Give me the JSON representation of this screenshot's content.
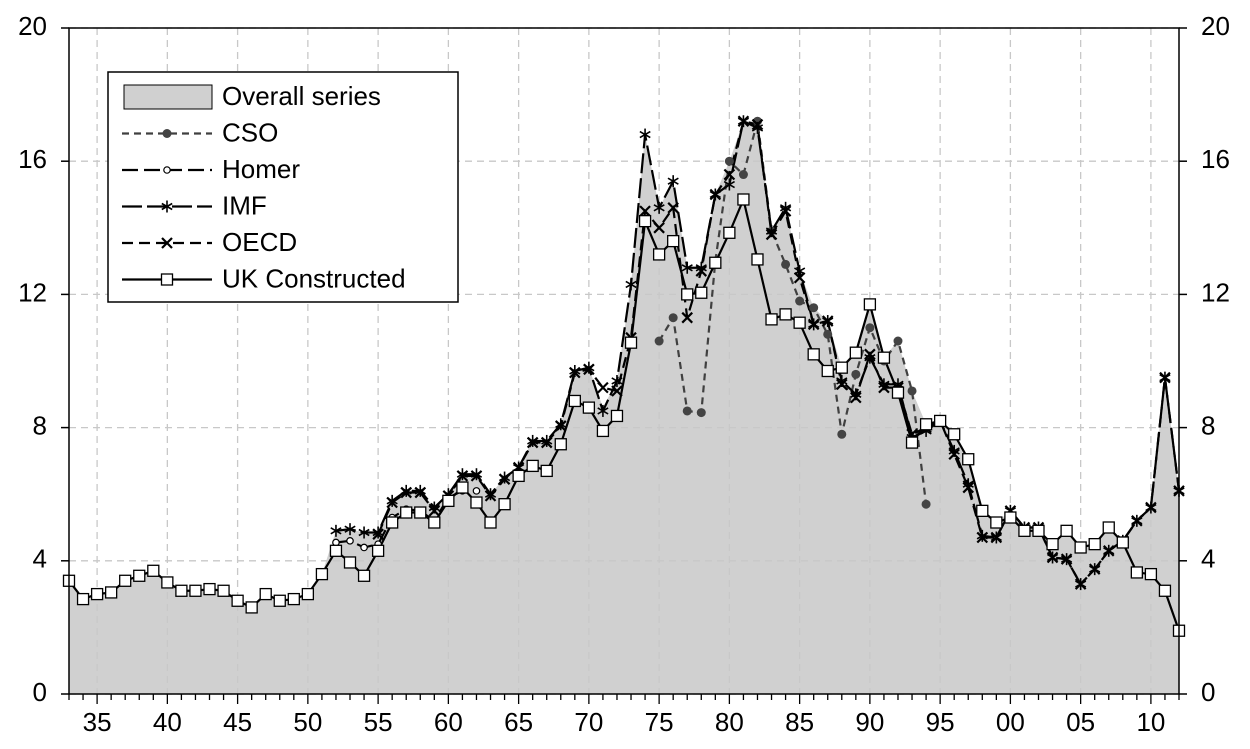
{
  "chart_data": {
    "type": "line",
    "categories": [
      null,
      null,
      "35",
      null,
      null,
      null,
      null,
      "40",
      null,
      null,
      null,
      null,
      "45",
      null,
      null,
      null,
      null,
      "50",
      null,
      null,
      null,
      null,
      "55",
      null,
      null,
      null,
      null,
      "60",
      null,
      null,
      null,
      null,
      "65",
      null,
      null,
      null,
      null,
      "70",
      null,
      null,
      null,
      null,
      "75",
      null,
      null,
      null,
      null,
      "80",
      null,
      null,
      null,
      null,
      "85",
      null,
      null,
      null,
      null,
      "90",
      null,
      null,
      null,
      null,
      "95",
      null,
      null,
      null,
      null,
      "00",
      null,
      null,
      null,
      null,
      "05",
      null,
      null,
      null,
      null,
      "10",
      null,
      null
    ],
    "ylim": [
      0,
      20
    ],
    "yticks": [
      0,
      4,
      8,
      12,
      16,
      20
    ],
    "y2lim": [
      0,
      20
    ],
    "y2ticks": [
      0,
      4,
      8,
      12,
      16,
      20
    ],
    "grid": true,
    "legend": "upper left",
    "series": [
      {
        "name": "Overall series",
        "kind": "area",
        "color": "#d0d0d0",
        "values": [
          3.4,
          2.85,
          3.0,
          3.05,
          3.4,
          3.55,
          3.7,
          3.35,
          3.1,
          3.1,
          3.15,
          3.1,
          2.8,
          2.6,
          3.0,
          2.8,
          2.85,
          3.0,
          3.6,
          4.9,
          4.95,
          4.85,
          4.85,
          5.8,
          6.1,
          6.1,
          5.6,
          6.0,
          6.6,
          6.6,
          6.0,
          6.5,
          6.8,
          7.6,
          7.6,
          8.1,
          9.7,
          9.8,
          8.6,
          9.4,
          12.3,
          16.8,
          14.6,
          15.4,
          12.8,
          12.8,
          15.0,
          16.0,
          17.2,
          17.2,
          13.9,
          14.6,
          12.7,
          11.6,
          11.2,
          9.8,
          10.25,
          11.7,
          10.1,
          10.6,
          9.1,
          8.1,
          8.2,
          7.8,
          7.05,
          5.5,
          5.15,
          5.5,
          5.0,
          5.0,
          4.5,
          4.9,
          4.4,
          4.5,
          5.0,
          4.6,
          5.2,
          5.6,
          9.5,
          6.1
        ]
      },
      {
        "name": "CSO",
        "color": "#404040",
        "dash": "7,5",
        "marker": "dot",
        "values": [
          null,
          null,
          null,
          null,
          null,
          null,
          null,
          null,
          null,
          null,
          null,
          null,
          null,
          null,
          null,
          null,
          null,
          null,
          null,
          null,
          null,
          null,
          null,
          null,
          null,
          null,
          null,
          null,
          null,
          null,
          null,
          null,
          null,
          null,
          null,
          null,
          null,
          null,
          null,
          null,
          null,
          null,
          10.6,
          11.3,
          8.5,
          8.45,
          13.0,
          16.0,
          15.6,
          17.2,
          13.9,
          12.9,
          11.8,
          11.6,
          10.8,
          7.8,
          9.6,
          11.0,
          10.0,
          10.6,
          9.1,
          5.7,
          null,
          null,
          null,
          null,
          null,
          null,
          null,
          null,
          null,
          null,
          null,
          null,
          null,
          null,
          null,
          null,
          null,
          null
        ]
      },
      {
        "name": "Homer",
        "color": "#000000",
        "dash": "16,6",
        "marker": "circle",
        "values": [
          null,
          null,
          null,
          null,
          null,
          null,
          null,
          null,
          null,
          null,
          null,
          null,
          null,
          null,
          null,
          null,
          null,
          null,
          null,
          4.55,
          4.6,
          4.4,
          4.5,
          5.3,
          5.55,
          5.5,
          5.2,
          5.9,
          6.1,
          6.1,
          null,
          null,
          null,
          null,
          null,
          null,
          null,
          null,
          null,
          null,
          null,
          null,
          null,
          null,
          null,
          null,
          null,
          null,
          null,
          null,
          null,
          null,
          null,
          null,
          null,
          null,
          null,
          null,
          null,
          null,
          null,
          null,
          null,
          null,
          null,
          null,
          null,
          null,
          null,
          null,
          null,
          null,
          null,
          null,
          null,
          null,
          null,
          null,
          null,
          null
        ]
      },
      {
        "name": "IMF",
        "color": "#000000",
        "dash": "20,5",
        "marker": "asterisk",
        "values": [
          null,
          null,
          null,
          null,
          null,
          null,
          null,
          null,
          null,
          null,
          null,
          null,
          null,
          null,
          null,
          null,
          null,
          null,
          null,
          4.9,
          4.95,
          4.85,
          4.85,
          5.8,
          6.1,
          6.1,
          5.6,
          6.0,
          6.6,
          6.6,
          6.0,
          6.5,
          6.8,
          7.6,
          7.6,
          8.1,
          9.7,
          9.8,
          8.5,
          9.4,
          12.3,
          16.8,
          14.6,
          15.4,
          12.8,
          12.8,
          15.0,
          15.3,
          17.2,
          17.0,
          13.9,
          14.6,
          12.7,
          11.1,
          11.2,
          9.4,
          9.0,
          10.1,
          9.3,
          9.3,
          7.7,
          7.9,
          8.2,
          7.3,
          6.3,
          4.75,
          4.7,
          5.5,
          5.0,
          5.0,
          4.1,
          4.05,
          3.3,
          3.75,
          4.3,
          4.6,
          5.2,
          5.6,
          9.5,
          6.1
        ]
      },
      {
        "name": "OECD",
        "color": "#000000",
        "dash": "11,6",
        "marker": "cross",
        "values": [
          null,
          null,
          null,
          null,
          null,
          null,
          null,
          null,
          null,
          null,
          null,
          null,
          null,
          null,
          null,
          null,
          null,
          null,
          null,
          null,
          null,
          null,
          4.8,
          5.75,
          6.05,
          6.05,
          5.5,
          5.95,
          6.55,
          6.55,
          5.95,
          6.45,
          6.8,
          7.55,
          7.55,
          8.05,
          9.65,
          9.75,
          9.2,
          9.1,
          10.7,
          14.5,
          14.0,
          14.6,
          11.3,
          12.7,
          15.0,
          15.6,
          17.2,
          17.1,
          13.8,
          14.5,
          12.5,
          11.1,
          11.2,
          9.3,
          8.9,
          10.2,
          9.2,
          9.2,
          7.8,
          8.0,
          8.2,
          7.2,
          6.2,
          4.7,
          4.7,
          5.5,
          5.0,
          5.0,
          4.1,
          4.05,
          3.3,
          3.75,
          4.3,
          4.6,
          5.2,
          5.6,
          9.5,
          6.1
        ]
      },
      {
        "name": "UK Constructed",
        "color": "#000000",
        "dash": "none",
        "marker": "square",
        "values": [
          3.4,
          2.85,
          3.0,
          3.05,
          3.4,
          3.55,
          3.7,
          3.35,
          3.1,
          3.1,
          3.15,
          3.1,
          2.8,
          2.6,
          3.0,
          2.8,
          2.85,
          3.0,
          3.6,
          4.3,
          3.95,
          3.55,
          4.3,
          5.15,
          5.45,
          5.45,
          5.15,
          5.8,
          6.2,
          5.75,
          5.15,
          5.7,
          6.55,
          6.85,
          6.7,
          7.5,
          8.8,
          8.6,
          7.9,
          8.35,
          10.55,
          14.2,
          13.2,
          13.6,
          12.0,
          12.05,
          12.95,
          13.85,
          14.85,
          13.05,
          11.25,
          11.4,
          11.15,
          10.2,
          9.7,
          9.8,
          10.25,
          11.7,
          10.1,
          9.05,
          7.55,
          8.1,
          8.2,
          7.8,
          7.05,
          5.5,
          5.15,
          5.3,
          4.9,
          4.9,
          4.5,
          4.9,
          4.4,
          4.5,
          5.0,
          4.55,
          3.65,
          3.6,
          3.1,
          1.9
        ]
      }
    ]
  }
}
